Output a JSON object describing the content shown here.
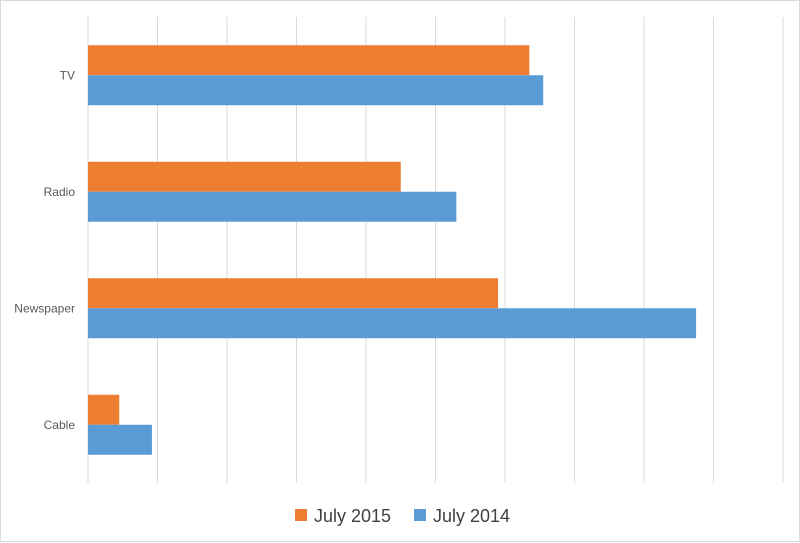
{
  "chart_data": {
    "type": "bar",
    "orientation": "horizontal",
    "categories": [
      "TV",
      "Radio",
      "Newspaper",
      "Cable"
    ],
    "series": [
      {
        "name": "July 2015",
        "color": "#ED7D31",
        "values": [
          63.5,
          45,
          59,
          4.5
        ]
      },
      {
        "name": "July 2014",
        "color": "#5B9BD5",
        "values": [
          65.5,
          53,
          87.5,
          9.2
        ]
      }
    ],
    "xlim": [
      0,
      100
    ],
    "grid": true,
    "tick_labels_shown": false,
    "legend_position": "bottom"
  }
}
